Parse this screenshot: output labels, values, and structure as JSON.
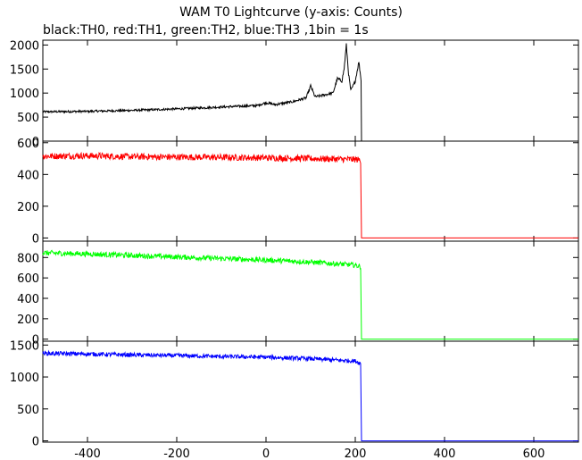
{
  "chart_data": {
    "type": "line",
    "title": "WAM T0 Lightcurve (y-axis: Counts)",
    "subtitle": "black:TH0, red:TH1, green:TH2, blue:TH3 ,1bin = 1s",
    "xlim": [
      -500,
      700
    ],
    "x_ticks": [
      "-400",
      "-200",
      "0",
      "200",
      "400",
      "600"
    ],
    "x_tick_values": [
      -400,
      -200,
      0,
      200,
      400,
      600
    ],
    "grid": false,
    "panels": [
      {
        "name": "TH0",
        "color": "#000000",
        "ylim": [
          0,
          2100
        ],
        "y_ticks": [
          "0",
          "500",
          "1000",
          "1500",
          "2000"
        ],
        "y_tick_values": [
          0,
          500,
          1000,
          1500,
          2000
        ],
        "x": [
          -500,
          -400,
          -300,
          -200,
          -100,
          -20,
          0,
          20,
          60,
          90,
          100,
          110,
          150,
          160,
          170,
          175,
          180,
          185,
          190,
          200,
          208,
          214,
          215,
          700
        ],
        "values": [
          610,
          620,
          640,
          670,
          710,
          740,
          800,
          760,
          820,
          900,
          1150,
          920,
          1000,
          1300,
          1250,
          1500,
          2000,
          1400,
          1050,
          1250,
          1650,
          1200,
          0,
          0
        ]
      },
      {
        "name": "TH1",
        "color": "#ff0000",
        "ylim": [
          -20,
          610
        ],
        "y_ticks": [
          "0",
          "200",
          "400",
          "600"
        ],
        "y_tick_values": [
          0,
          200,
          400,
          600
        ],
        "x": [
          -500,
          -400,
          -300,
          -200,
          -100,
          0,
          100,
          200,
          212,
          214,
          215,
          700
        ],
        "values": [
          515,
          518,
          512,
          510,
          508,
          505,
          500,
          495,
          490,
          0,
          0,
          0
        ]
      },
      {
        "name": "TH2",
        "color": "#00ff00",
        "ylim": [
          -20,
          960
        ],
        "y_ticks": [
          "0",
          "200",
          "400",
          "600",
          "800"
        ],
        "y_tick_values": [
          0,
          200,
          400,
          600,
          800
        ],
        "x": [
          -500,
          -400,
          -300,
          -200,
          -100,
          0,
          100,
          200,
          212,
          214,
          215,
          700
        ],
        "values": [
          845,
          835,
          820,
          805,
          790,
          775,
          755,
          725,
          710,
          0,
          0,
          0
        ]
      },
      {
        "name": "TH3",
        "color": "#0000ff",
        "ylim": [
          -20,
          1560
        ],
        "y_ticks": [
          "0",
          "500",
          "1000",
          "1500"
        ],
        "y_tick_values": [
          0,
          500,
          1000,
          1500
        ],
        "x": [
          -500,
          -400,
          -300,
          -200,
          -100,
          0,
          100,
          200,
          212,
          214,
          215,
          700
        ],
        "values": [
          1370,
          1360,
          1345,
          1335,
          1320,
          1310,
          1285,
          1250,
          1210,
          0,
          0,
          0
        ]
      }
    ]
  }
}
